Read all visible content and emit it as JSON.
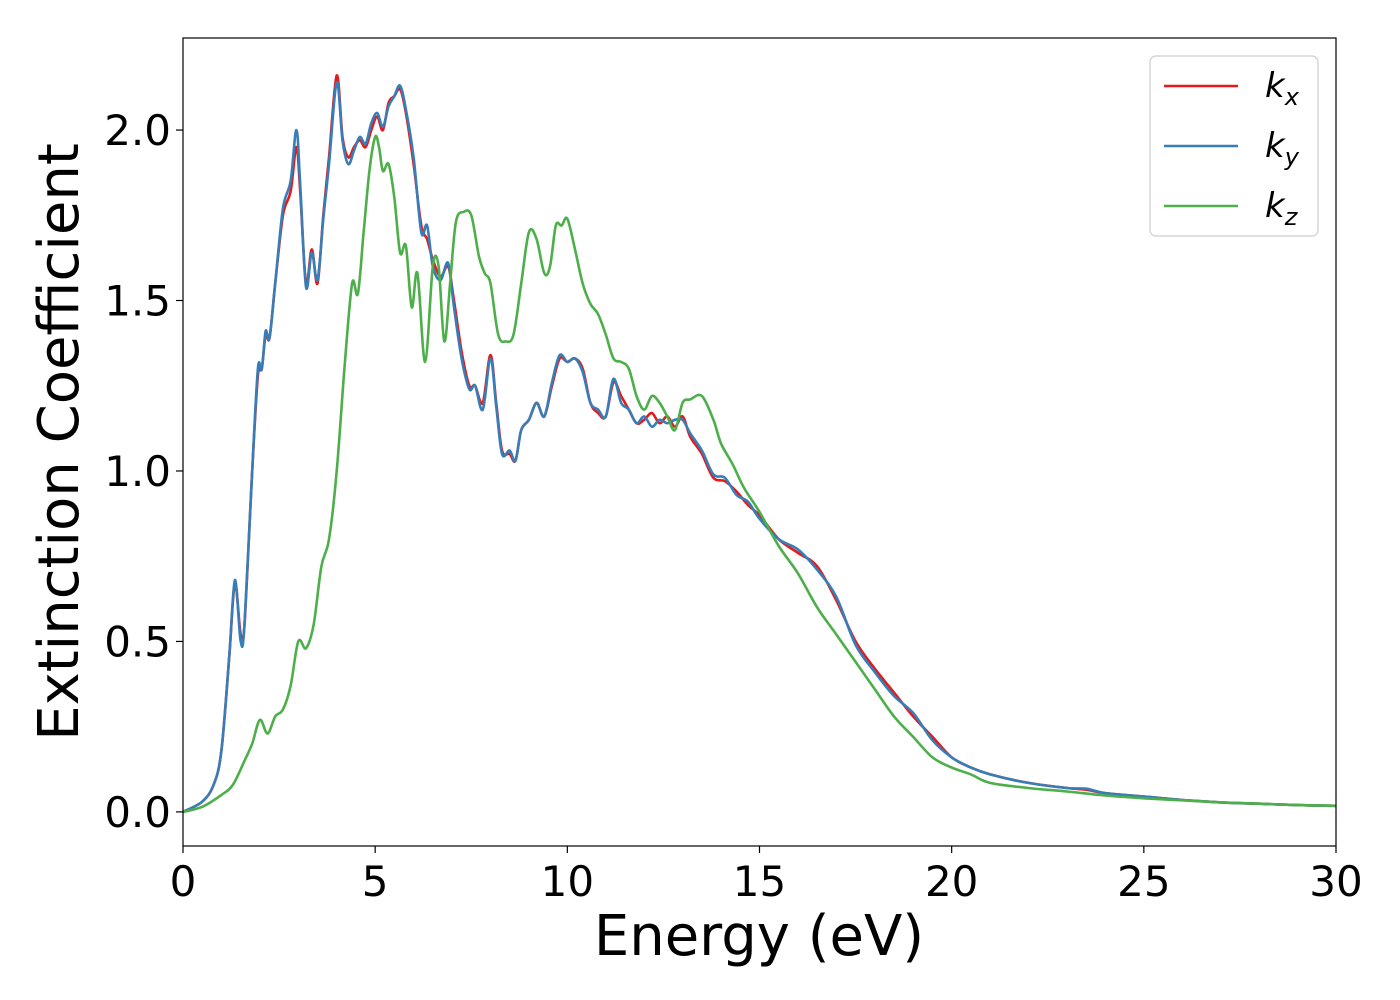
{
  "chart_data": {
    "type": "line",
    "xlabel": "Energy (eV)",
    "ylabel": "Extinction Coefficient",
    "xlim": [
      0,
      30
    ],
    "ylim": [
      -0.1,
      2.27
    ],
    "xticks": [
      0,
      5,
      10,
      15,
      20,
      25,
      30
    ],
    "xtick_labels": [
      "0",
      "5",
      "10",
      "15",
      "20",
      "25",
      "30"
    ],
    "yticks": [
      0.0,
      0.5,
      1.0,
      1.5,
      2.0
    ],
    "ytick_labels": [
      "0.0",
      "0.5",
      "1.0",
      "1.5",
      "2.0"
    ],
    "grid": false,
    "legend_position": "top-right",
    "series": [
      {
        "name": "k",
        "subscript": "x",
        "color": "#e41a1c",
        "x": [
          0,
          0.5,
          0.8,
          1.0,
          1.2,
          1.35,
          1.5,
          1.6,
          1.8,
          1.95,
          2.05,
          2.15,
          2.25,
          2.4,
          2.6,
          2.8,
          2.95,
          3.05,
          3.2,
          3.35,
          3.5,
          3.65,
          3.8,
          4.0,
          4.15,
          4.3,
          4.45,
          4.6,
          4.75,
          4.9,
          5.05,
          5.2,
          5.35,
          5.5,
          5.65,
          5.8,
          6.0,
          6.2,
          6.35,
          6.5,
          6.7,
          6.9,
          7.05,
          7.25,
          7.45,
          7.6,
          7.8,
          8.0,
          8.15,
          8.3,
          8.5,
          8.65,
          8.8,
          9.0,
          9.2,
          9.4,
          9.6,
          9.8,
          10.0,
          10.2,
          10.4,
          10.6,
          10.8,
          11.0,
          11.2,
          11.4,
          11.6,
          11.8,
          12.0,
          12.2,
          12.4,
          12.6,
          12.8,
          13.0,
          13.2,
          13.5,
          13.8,
          14.1,
          14.4,
          14.7,
          15.0,
          15.5,
          16.0,
          16.5,
          17.0,
          17.5,
          18.0,
          18.5,
          19.0,
          19.5,
          20.0,
          20.5,
          21.0,
          22.0,
          23.0,
          23.5,
          24.0,
          25.0,
          26.0,
          27.0,
          28.0,
          29.0,
          30.0
        ],
        "y": [
          0.0,
          0.03,
          0.08,
          0.18,
          0.45,
          0.67,
          0.52,
          0.55,
          1.0,
          1.28,
          1.3,
          1.4,
          1.39,
          1.55,
          1.75,
          1.82,
          1.95,
          1.82,
          1.55,
          1.65,
          1.55,
          1.75,
          1.92,
          2.16,
          1.98,
          1.92,
          1.95,
          1.97,
          1.95,
          2.0,
          2.04,
          2.0,
          2.08,
          2.1,
          2.12,
          2.05,
          1.9,
          1.72,
          1.68,
          1.62,
          1.57,
          1.6,
          1.5,
          1.35,
          1.25,
          1.25,
          1.2,
          1.34,
          1.2,
          1.06,
          1.05,
          1.03,
          1.12,
          1.15,
          1.2,
          1.16,
          1.25,
          1.33,
          1.32,
          1.33,
          1.3,
          1.2,
          1.17,
          1.16,
          1.26,
          1.22,
          1.18,
          1.14,
          1.15,
          1.17,
          1.14,
          1.16,
          1.13,
          1.16,
          1.1,
          1.05,
          0.98,
          0.97,
          0.94,
          0.9,
          0.87,
          0.8,
          0.76,
          0.72,
          0.62,
          0.5,
          0.42,
          0.35,
          0.28,
          0.22,
          0.16,
          0.13,
          0.11,
          0.085,
          0.07,
          0.065,
          0.055,
          0.045,
          0.035,
          0.028,
          0.024,
          0.02,
          0.018
        ]
      },
      {
        "name": "k",
        "subscript": "y",
        "color": "#377eb8",
        "x": [
          0,
          0.5,
          0.8,
          1.0,
          1.2,
          1.35,
          1.5,
          1.6,
          1.8,
          1.95,
          2.05,
          2.15,
          2.25,
          2.4,
          2.6,
          2.8,
          2.95,
          3.05,
          3.2,
          3.35,
          3.5,
          3.65,
          3.8,
          4.0,
          4.15,
          4.3,
          4.45,
          4.6,
          4.75,
          4.9,
          5.05,
          5.2,
          5.35,
          5.5,
          5.65,
          5.8,
          6.0,
          6.2,
          6.35,
          6.5,
          6.7,
          6.9,
          7.05,
          7.25,
          7.45,
          7.6,
          7.8,
          8.0,
          8.15,
          8.3,
          8.5,
          8.65,
          8.8,
          9.0,
          9.2,
          9.4,
          9.6,
          9.8,
          10.0,
          10.2,
          10.4,
          10.6,
          10.8,
          11.0,
          11.2,
          11.4,
          11.6,
          11.8,
          12.0,
          12.2,
          12.4,
          12.6,
          12.8,
          13.0,
          13.2,
          13.5,
          13.8,
          14.1,
          14.4,
          14.7,
          15.0,
          15.5,
          16.0,
          16.5,
          17.0,
          17.5,
          18.0,
          18.5,
          19.0,
          19.5,
          20.0,
          20.5,
          21.0,
          22.0,
          23.0,
          23.5,
          24.0,
          25.0,
          26.0,
          27.0,
          28.0,
          29.0,
          30.0
        ],
        "y": [
          0.0,
          0.03,
          0.08,
          0.18,
          0.45,
          0.68,
          0.5,
          0.55,
          1.0,
          1.3,
          1.3,
          1.41,
          1.39,
          1.55,
          1.77,
          1.85,
          2.0,
          1.84,
          1.54,
          1.64,
          1.56,
          1.74,
          1.9,
          2.14,
          1.97,
          1.9,
          1.94,
          1.98,
          1.96,
          2.02,
          2.05,
          2.01,
          2.07,
          2.1,
          2.13,
          2.06,
          1.92,
          1.7,
          1.72,
          1.6,
          1.56,
          1.61,
          1.48,
          1.33,
          1.24,
          1.25,
          1.18,
          1.33,
          1.19,
          1.05,
          1.06,
          1.03,
          1.12,
          1.15,
          1.2,
          1.16,
          1.26,
          1.34,
          1.32,
          1.33,
          1.29,
          1.2,
          1.18,
          1.16,
          1.27,
          1.2,
          1.18,
          1.14,
          1.16,
          1.13,
          1.15,
          1.14,
          1.15,
          1.15,
          1.11,
          1.06,
          0.99,
          0.98,
          0.93,
          0.91,
          0.86,
          0.8,
          0.77,
          0.71,
          0.63,
          0.49,
          0.41,
          0.34,
          0.29,
          0.21,
          0.16,
          0.13,
          0.11,
          0.085,
          0.07,
          0.068,
          0.055,
          0.045,
          0.035,
          0.028,
          0.024,
          0.02,
          0.018
        ]
      },
      {
        "name": "k",
        "subscript": "z",
        "color": "#4daf4a",
        "x": [
          0,
          0.5,
          1.0,
          1.3,
          1.6,
          1.8,
          2.0,
          2.2,
          2.4,
          2.6,
          2.8,
          3.0,
          3.2,
          3.4,
          3.6,
          3.8,
          4.0,
          4.2,
          4.4,
          4.55,
          4.7,
          4.85,
          5.0,
          5.1,
          5.2,
          5.35,
          5.5,
          5.65,
          5.8,
          5.95,
          6.1,
          6.3,
          6.5,
          6.65,
          6.8,
          6.95,
          7.1,
          7.3,
          7.5,
          7.7,
          7.85,
          8.0,
          8.2,
          8.4,
          8.6,
          8.8,
          9.0,
          9.2,
          9.4,
          9.55,
          9.7,
          9.85,
          10.0,
          10.2,
          10.4,
          10.6,
          10.8,
          11.0,
          11.2,
          11.4,
          11.6,
          11.8,
          12.0,
          12.2,
          12.4,
          12.6,
          12.8,
          13.0,
          13.2,
          13.5,
          13.8,
          14.0,
          14.3,
          14.6,
          15.0,
          15.5,
          16.0,
          16.5,
          17.0,
          17.5,
          18.0,
          18.5,
          19.0,
          19.5,
          20.0,
          20.5,
          21.0,
          22.0,
          23.0,
          24.0,
          25.0,
          26.0,
          27.0,
          28.0,
          29.0,
          30.0
        ],
        "y": [
          0.0,
          0.015,
          0.05,
          0.08,
          0.15,
          0.2,
          0.27,
          0.23,
          0.28,
          0.3,
          0.37,
          0.5,
          0.48,
          0.55,
          0.72,
          0.8,
          1.0,
          1.3,
          1.55,
          1.52,
          1.7,
          1.88,
          1.98,
          1.95,
          1.88,
          1.9,
          1.8,
          1.64,
          1.66,
          1.48,
          1.58,
          1.32,
          1.6,
          1.6,
          1.38,
          1.55,
          1.73,
          1.76,
          1.75,
          1.63,
          1.58,
          1.55,
          1.4,
          1.38,
          1.4,
          1.55,
          1.7,
          1.68,
          1.58,
          1.6,
          1.72,
          1.72,
          1.74,
          1.65,
          1.55,
          1.49,
          1.46,
          1.4,
          1.33,
          1.32,
          1.3,
          1.22,
          1.18,
          1.22,
          1.2,
          1.16,
          1.12,
          1.2,
          1.21,
          1.22,
          1.15,
          1.08,
          1.02,
          0.95,
          0.88,
          0.78,
          0.7,
          0.6,
          0.52,
          0.44,
          0.36,
          0.28,
          0.22,
          0.16,
          0.13,
          0.11,
          0.085,
          0.07,
          0.06,
          0.048,
          0.04,
          0.034,
          0.028,
          0.024,
          0.02,
          0.018
        ]
      }
    ]
  }
}
